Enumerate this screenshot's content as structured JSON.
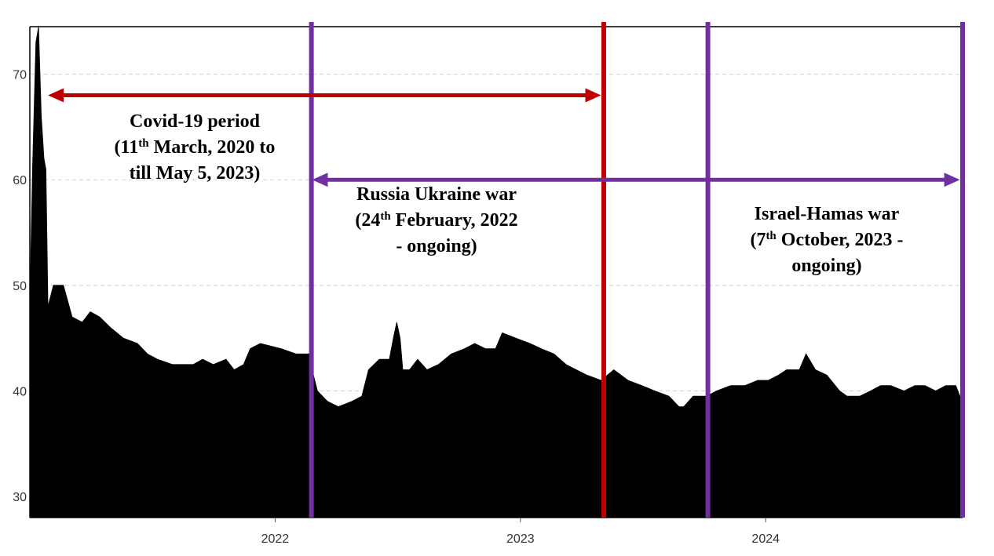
{
  "chart_data": {
    "type": "area",
    "title": "",
    "xlabel": "",
    "ylabel": "",
    "xlim": [
      "2021-01-01",
      "2024-10-20"
    ],
    "ylim": [
      28,
      74.5
    ],
    "y_ticks": [
      30,
      40,
      50,
      60,
      70
    ],
    "x_ticks": [
      {
        "date": "2022-01-01",
        "label": "2022"
      },
      {
        "date": "2023-01-01",
        "label": "2023"
      },
      {
        "date": "2024-01-01",
        "label": "2024"
      }
    ],
    "grid": "horizontal dashed",
    "series": [
      {
        "color": "#000000",
        "points": [
          [
            "2021-01-01",
            48
          ],
          [
            "2021-01-05",
            61
          ],
          [
            "2021-01-10",
            73
          ],
          [
            "2021-01-14",
            74.5
          ],
          [
            "2021-01-18",
            66
          ],
          [
            "2021-01-22",
            62
          ],
          [
            "2021-01-25",
            61
          ],
          [
            "2021-01-28",
            48
          ],
          [
            "2021-02-05",
            50
          ],
          [
            "2021-02-20",
            50
          ],
          [
            "2021-03-05",
            47
          ],
          [
            "2021-03-20",
            46.5
          ],
          [
            "2021-04-01",
            47.5
          ],
          [
            "2021-04-15",
            47
          ],
          [
            "2021-05-01",
            46
          ],
          [
            "2021-05-20",
            45
          ],
          [
            "2021-06-10",
            44.5
          ],
          [
            "2021-06-25",
            43.5
          ],
          [
            "2021-07-10",
            43
          ],
          [
            "2021-08-01",
            42.5
          ],
          [
            "2021-09-01",
            42.5
          ],
          [
            "2021-09-15",
            43
          ],
          [
            "2021-10-01",
            42.5
          ],
          [
            "2021-10-20",
            43
          ],
          [
            "2021-11-01",
            42
          ],
          [
            "2021-11-15",
            42.5
          ],
          [
            "2021-11-25",
            44
          ],
          [
            "2021-12-10",
            44.5
          ],
          [
            "2022-01-10",
            44
          ],
          [
            "2022-02-01",
            43.5
          ],
          [
            "2022-02-22",
            43.5
          ],
          [
            "2022-02-25",
            42
          ],
          [
            "2022-03-05",
            40
          ],
          [
            "2022-03-20",
            39
          ],
          [
            "2022-04-05",
            38.5
          ],
          [
            "2022-04-25",
            39
          ],
          [
            "2022-05-10",
            39.5
          ],
          [
            "2022-05-20",
            42
          ],
          [
            "2022-06-05",
            43
          ],
          [
            "2022-06-20",
            43
          ],
          [
            "2022-06-26",
            45
          ],
          [
            "2022-07-01",
            46.5
          ],
          [
            "2022-07-06",
            45
          ],
          [
            "2022-07-10",
            42
          ],
          [
            "2022-07-20",
            42
          ],
          [
            "2022-08-01",
            43
          ],
          [
            "2022-08-15",
            42
          ],
          [
            "2022-09-01",
            42.5
          ],
          [
            "2022-09-20",
            43.5
          ],
          [
            "2022-10-10",
            44
          ],
          [
            "2022-10-25",
            44.5
          ],
          [
            "2022-11-10",
            44
          ],
          [
            "2022-11-25",
            44
          ],
          [
            "2022-12-05",
            45.5
          ],
          [
            "2022-12-25",
            45
          ],
          [
            "2023-01-15",
            44.5
          ],
          [
            "2023-02-01",
            44
          ],
          [
            "2023-02-20",
            43.5
          ],
          [
            "2023-03-10",
            42.5
          ],
          [
            "2023-03-25",
            42
          ],
          [
            "2023-04-10",
            41.5
          ],
          [
            "2023-05-01",
            41
          ],
          [
            "2023-05-20",
            42
          ],
          [
            "2023-06-10",
            41
          ],
          [
            "2023-07-01",
            40.5
          ],
          [
            "2023-07-20",
            40
          ],
          [
            "2023-08-10",
            39.5
          ],
          [
            "2023-08-25",
            38.5
          ],
          [
            "2023-09-01",
            38.5
          ],
          [
            "2023-09-15",
            39.5
          ],
          [
            "2023-10-05",
            39.5
          ],
          [
            "2023-10-20",
            40
          ],
          [
            "2023-11-10",
            40.5
          ],
          [
            "2023-12-01",
            40.5
          ],
          [
            "2023-12-20",
            41
          ],
          [
            "2024-01-05",
            41
          ],
          [
            "2024-01-20",
            41.5
          ],
          [
            "2024-02-01",
            42
          ],
          [
            "2024-02-20",
            42
          ],
          [
            "2024-03-01",
            43.5
          ],
          [
            "2024-03-15",
            42
          ],
          [
            "2024-04-01",
            41.5
          ],
          [
            "2024-04-20",
            40
          ],
          [
            "2024-05-01",
            39.5
          ],
          [
            "2024-05-20",
            39.5
          ],
          [
            "2024-06-05",
            40
          ],
          [
            "2024-06-20",
            40.5
          ],
          [
            "2024-07-05",
            40.5
          ],
          [
            "2024-07-25",
            40
          ],
          [
            "2024-08-10",
            40.5
          ],
          [
            "2024-08-25",
            40.5
          ],
          [
            "2024-09-10",
            40
          ],
          [
            "2024-09-25",
            40.5
          ],
          [
            "2024-10-10",
            40.5
          ],
          [
            "2024-10-16",
            39.5
          ]
        ]
      }
    ],
    "event_lines": [
      {
        "date": "2022-02-24",
        "color": "#7030a0"
      },
      {
        "date": "2023-05-05",
        "color": "#c00000"
      },
      {
        "date": "2023-10-07",
        "color": "#7030a0"
      },
      {
        "date": "2024-10-20",
        "color": "#7030a0"
      }
    ],
    "arrows": [
      {
        "from": "2021-01-28",
        "to": "2023-05-01",
        "y": 68,
        "color": "#c00000"
      },
      {
        "from": "2022-02-25",
        "to": "2024-10-16",
        "y": 60,
        "color": "#7030a0"
      }
    ],
    "annotations": [
      {
        "lines": [
          [
            {
              "text": "Covid-19 period",
              "sup": false
            }
          ],
          [
            {
              "text": "(11",
              "sup": false
            },
            {
              "text": "th",
              "sup": true
            },
            {
              "text": " March, 2020 to",
              "sup": false
            }
          ],
          [
            {
              "text": "till May 5, 2023)",
              "sup": false
            }
          ]
        ]
      },
      {
        "lines": [
          [
            {
              "text": "Russia Ukraine war",
              "sup": false
            }
          ],
          [
            {
              "text": "(24",
              "sup": false
            },
            {
              "text": "th",
              "sup": true
            },
            {
              "text": " February, 2022",
              "sup": false
            }
          ],
          [
            {
              "text": "- ongoing)",
              "sup": false
            }
          ]
        ]
      },
      {
        "lines": [
          [
            {
              "text": "Israel-Hamas war",
              "sup": false
            }
          ],
          [
            {
              "text": "(7",
              "sup": false
            },
            {
              "text": "th",
              "sup": true
            },
            {
              "text": " October, 2023 -",
              "sup": false
            }
          ],
          [
            {
              "text": "ongoing)",
              "sup": false
            }
          ]
        ]
      }
    ]
  }
}
